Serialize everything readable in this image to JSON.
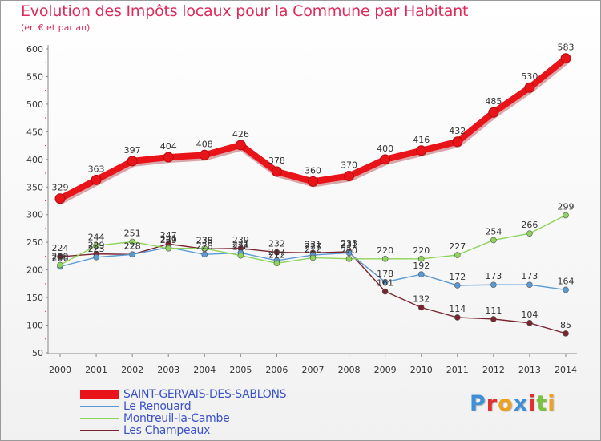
{
  "header": {
    "title": "Evolution des Impôts locaux pour la Commune par Habitant",
    "subtitle": "(en € et par an)"
  },
  "chart_data": {
    "type": "line",
    "title": "Evolution des Impôts locaux pour la Commune par Habitant",
    "subtitle": "(en € et par an)",
    "xlabel": "",
    "ylabel": "",
    "ylim": [
      50,
      600
    ],
    "yticks": [
      50,
      100,
      150,
      200,
      250,
      300,
      350,
      400,
      450,
      500,
      550,
      600
    ],
    "grid": false,
    "legend_position": "bottom-left",
    "x": [
      2000,
      2001,
      2002,
      2003,
      2004,
      2005,
      2006,
      2007,
      2008,
      2009,
      2010,
      2011,
      2012,
      2013,
      2014
    ],
    "series": [
      {
        "name": "SAINT-GERVAIS-DES-SABLONS",
        "color": "#e8141a",
        "values": [
          329,
          363,
          397,
          404,
          408,
          426,
          378,
          360,
          370,
          400,
          416,
          432,
          485,
          530,
          583
        ]
      },
      {
        "name": "Le Renouard",
        "color": "#5b9bd5",
        "values": [
          206,
          223,
          228,
          241,
          228,
          231,
          217,
          227,
          231,
          178,
          192,
          172,
          173,
          173,
          164
        ]
      },
      {
        "name": "Montreuil-la-Cambe",
        "color": "#8fd45a",
        "values": [
          209,
          244,
          251,
          239,
          239,
          226,
          212,
          222,
          220,
          220,
          220,
          227,
          254,
          266,
          299
        ]
      },
      {
        "name": "Les Champeaux",
        "color": "#7a2430",
        "values": [
          224,
          229,
          228,
          247,
          238,
          239,
          232,
          231,
          233,
          161,
          132,
          114,
          111,
          104,
          85
        ]
      }
    ],
    "data_labels": [
      {
        "series": 0,
        "labels": [
          "329",
          "363",
          "397",
          "404",
          "408",
          "426",
          "378",
          "360",
          "370",
          "400",
          "416",
          "432",
          "485",
          "530",
          "583"
        ]
      },
      {
        "series": 1,
        "labels": [
          "206",
          "223",
          "228",
          "241",
          "228",
          "231",
          "217",
          "227",
          "231",
          "178",
          "192",
          "172",
          "173",
          "173",
          "164"
        ]
      },
      {
        "series": 2,
        "labels": [
          "209",
          "244",
          "251",
          "239",
          "239",
          "226",
          "212",
          "222",
          "220",
          "220",
          "220",
          "227",
          "254",
          "266",
          "299"
        ]
      },
      {
        "series": 3,
        "labels": [
          "224",
          "229",
          "228",
          "247",
          "238",
          "239",
          "232",
          "231",
          "233",
          "161",
          "132",
          "114",
          "111",
          "104",
          "85"
        ]
      }
    ]
  },
  "legend": {
    "items": [
      {
        "label": "SAINT-GERVAIS-DES-SABLONS",
        "color": "#e8141a"
      },
      {
        "label": "Le Renouard",
        "color": "#5b9bd5"
      },
      {
        "label": "Montreuil-la-Cambe",
        "color": "#8fd45a"
      },
      {
        "label": "Les Champeaux",
        "color": "#7a2430"
      }
    ]
  },
  "logo": {
    "text": "Proxiti",
    "letters": [
      {
        "char": "P",
        "color": "#3d8fd8"
      },
      {
        "char": "r",
        "color": "#e03030"
      },
      {
        "char": "o",
        "color": "#f0a020"
      },
      {
        "char": "x",
        "color": "#3d8fd8"
      },
      {
        "char": "i",
        "color": "#e03030"
      },
      {
        "char": "t",
        "color": "#7cc242"
      },
      {
        "char": "i",
        "color": "#f0a020"
      }
    ]
  }
}
